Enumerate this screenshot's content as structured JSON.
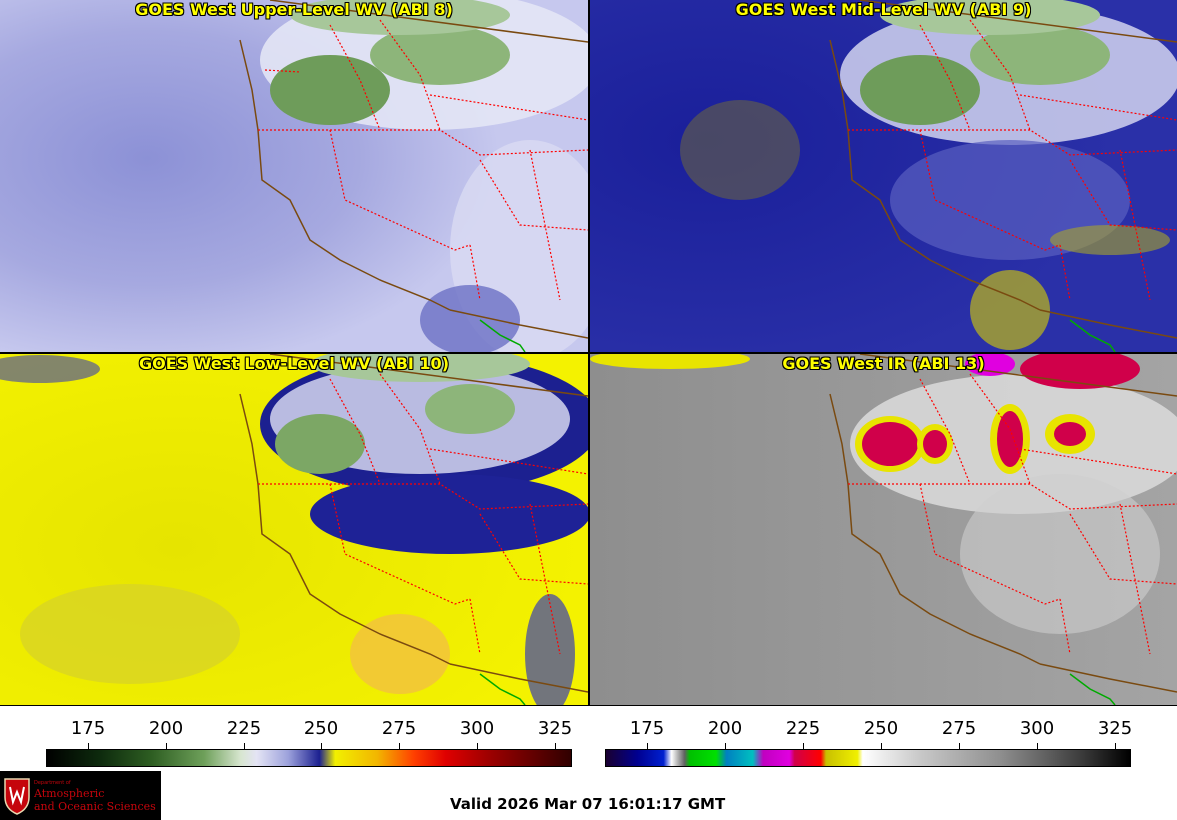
{
  "panels": {
    "upper": {
      "title": "GOES West Upper-Level WV (ABI 8)"
    },
    "mid": {
      "title": "GOES West Mid-Level WV (ABI 9)"
    },
    "low": {
      "title": "GOES West Low-Level WV (ABI 10)"
    },
    "ir": {
      "title": "GOES West IR (ABI 13)"
    }
  },
  "colorbars": {
    "wv": {
      "ticks": [
        "175",
        "200",
        "225",
        "250",
        "275",
        "300",
        "325"
      ]
    },
    "ir": {
      "ticks": [
        "175",
        "200",
        "225",
        "250",
        "275",
        "300",
        "325"
      ]
    }
  },
  "logo": {
    "line0": "Department of",
    "line1": "Atmospheric",
    "line2": "and Oceanic Sciences"
  },
  "footer": {
    "valid": "Valid 2026 Mar 07 16:01:17 GMT"
  },
  "colors": {
    "state_border": "#ff0000",
    "coastline": "#7a4a10",
    "mexico_border": "#00aa00",
    "title_text": "#ffff00"
  }
}
